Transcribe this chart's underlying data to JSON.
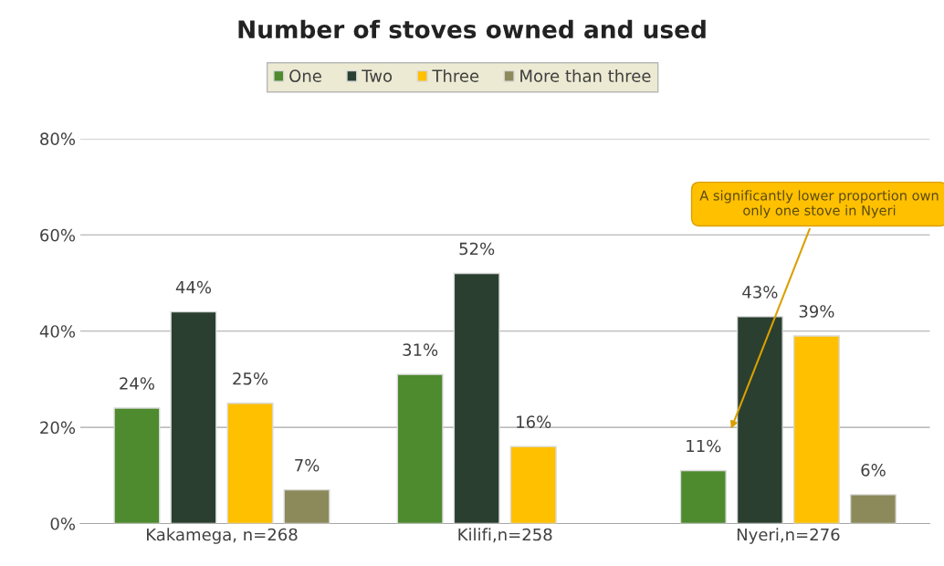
{
  "chart_data": {
    "type": "bar",
    "title": "Number of stoves owned and used",
    "categories": [
      "Kakamega, n=268",
      "Kilifi,n=258",
      "Nyeri,n=276"
    ],
    "series": [
      {
        "name": "One",
        "color": "#4e8a2e",
        "values": [
          24,
          31,
          11
        ],
        "value_labels": [
          "24%",
          "31%",
          "11%"
        ]
      },
      {
        "name": "Two",
        "color": "#2a3f30",
        "values": [
          44,
          52,
          43
        ],
        "value_labels": [
          "44%",
          "52%",
          "43%"
        ]
      },
      {
        "name": "Three",
        "color": "#ffc000",
        "values": [
          25,
          16,
          39
        ],
        "value_labels": [
          "25%",
          "16%",
          "39%"
        ]
      },
      {
        "name": "More than three",
        "color": "#8c8a5a",
        "values": [
          7,
          null,
          6
        ],
        "value_labels": [
          "7%",
          null,
          "6%"
        ]
      }
    ],
    "ylim": [
      0,
      80
    ],
    "yticks": [
      {
        "value": 0,
        "label": "0%"
      },
      {
        "value": 20,
        "label": "20%"
      },
      {
        "value": 40,
        "label": "40%"
      },
      {
        "value": 60,
        "label": "60%"
      },
      {
        "value": 80,
        "label": "80%"
      }
    ],
    "grid": "y",
    "legend": "top",
    "annotations": [
      "A significantly lower proportion own only one stove in Nyeri"
    ]
  }
}
